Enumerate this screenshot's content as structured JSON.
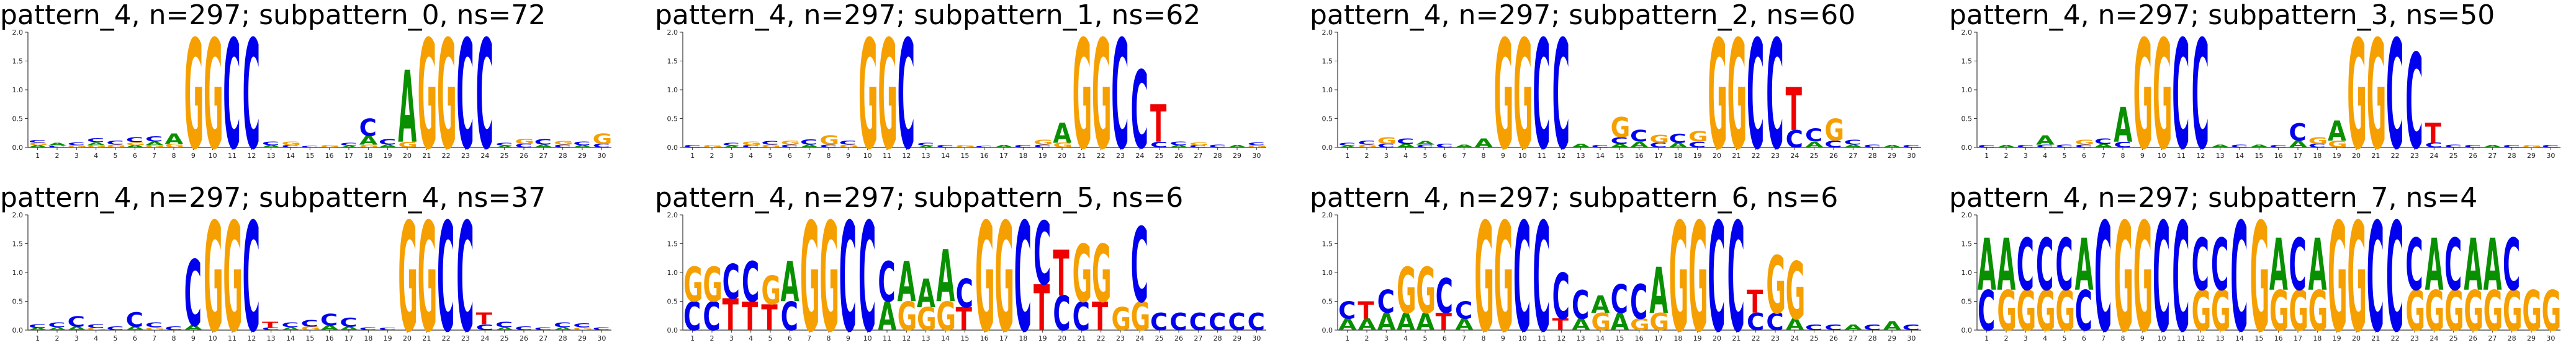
{
  "colors": {
    "A": "#109648",
    "C": "#255c99",
    "G": "#f7b32b",
    "T": "#d62839",
    "C_display": "#0000ee",
    "G_display": "#f5a000",
    "A_display": "#089000",
    "T_display": "#ee0000"
  },
  "chart_data": [
    {
      "type": "sequence-logo",
      "title": "pattern_4, n=297; subpattern_0, ns=72",
      "ylim": [
        0,
        2.0
      ],
      "yticks": [
        "0.0",
        "0.5",
        "1.0",
        "1.5",
        "2.0"
      ],
      "positions": [
        "1",
        "2",
        "3",
        "4",
        "5",
        "6",
        "7",
        "8",
        "9",
        "10",
        "11",
        "12",
        "13",
        "14",
        "15",
        "16",
        "17",
        "18",
        "19",
        "20",
        "21",
        "22",
        "23",
        "24",
        "25",
        "26",
        "27",
        "28",
        "29",
        "30"
      ],
      "columns": [
        {
          "C": 0.05,
          "A": 0.04,
          "G": 0.04
        },
        {
          "A": 0.05,
          "C": 0.03
        },
        {
          "C": 0.05,
          "G": 0.04
        },
        {
          "C": 0.07,
          "A": 0.05,
          "G": 0.04
        },
        {
          "C": 0.07,
          "G": 0.05
        },
        {
          "C": 0.08,
          "G": 0.05,
          "A": 0.04
        },
        {
          "C": 0.09,
          "A": 0.06,
          "G": 0.04
        },
        {
          "A": 0.18,
          "G": 0.06
        },
        {
          "G": 1.9
        },
        {
          "G": 1.9
        },
        {
          "C": 1.9
        },
        {
          "C": 1.9
        },
        {
          "C": 0.06,
          "A": 0.04
        },
        {
          "G": 0.06,
          "C": 0.04
        },
        {
          "C": 0.03
        },
        {
          "G": 0.04
        },
        {
          "C": 0.05,
          "A": 0.03
        },
        {
          "C": 0.3,
          "A": 0.15,
          "G": 0.05
        },
        {
          "C": 0.1,
          "A": 0.05
        },
        {
          "A": 1.25,
          "G": 0.1
        },
        {
          "G": 1.9
        },
        {
          "G": 1.9
        },
        {
          "C": 1.9
        },
        {
          "C": 1.9
        },
        {
          "C": 0.05,
          "A": 0.03
        },
        {
          "G": 0.09,
          "C": 0.06
        },
        {
          "C": 0.1,
          "A": 0.05
        },
        {
          "G": 0.06,
          "C": 0.05
        },
        {
          "C": 0.06,
          "A": 0.04
        },
        {
          "G": 0.18,
          "C": 0.06
        }
      ]
    },
    {
      "type": "sequence-logo",
      "title": "pattern_4, n=297; subpattern_1, ns=62",
      "ylim": [
        0,
        2.0
      ],
      "yticks": [
        "0.0",
        "0.5",
        "1.0",
        "1.5",
        "2.0"
      ],
      "positions": [
        "1",
        "2",
        "3",
        "4",
        "5",
        "6",
        "7",
        "8",
        "9",
        "10",
        "11",
        "12",
        "13",
        "14",
        "15",
        "16",
        "17",
        "18",
        "19",
        "20",
        "21",
        "22",
        "23",
        "24",
        "25",
        "26",
        "27",
        "28",
        "29",
        "30"
      ],
      "columns": [
        {
          "C": 0.04
        },
        {
          "G": 0.04
        },
        {
          "C": 0.05,
          "A": 0.03
        },
        {
          "G": 0.06,
          "C": 0.04
        },
        {
          "C": 0.06,
          "G": 0.05
        },
        {
          "G": 0.07,
          "C": 0.05
        },
        {
          "C": 0.09,
          "A": 0.05
        },
        {
          "G": 0.16,
          "C": 0.05
        },
        {
          "C": 0.07,
          "G": 0.05
        },
        {
          "G": 1.9
        },
        {
          "G": 1.9
        },
        {
          "C": 1.9
        },
        {
          "C": 0.05,
          "A": 0.03
        },
        {
          "C": 0.04
        },
        {
          "G": 0.04
        },
        {
          "C": 0.03
        },
        {
          "A": 0.04
        },
        {
          "C": 0.04
        },
        {
          "G": 0.08,
          "C": 0.05
        },
        {
          "A": 0.35,
          "G": 0.08
        },
        {
          "G": 1.9
        },
        {
          "G": 1.9
        },
        {
          "C": 1.9
        },
        {
          "C": 1.35
        },
        {
          "T": 0.65,
          "C": 0.1
        },
        {
          "C": 0.06,
          "A": 0.04
        },
        {
          "G": 0.05,
          "C": 0.04
        },
        {
          "C": 0.05
        },
        {
          "A": 0.04
        },
        {
          "C": 0.05,
          "G": 0.04
        }
      ]
    },
    {
      "type": "sequence-logo",
      "title": "pattern_4, n=297; subpattern_2, ns=60",
      "ylim": [
        0,
        2.0
      ],
      "yticks": [
        "0.0",
        "0.5",
        "1.0",
        "1.5",
        "2.0"
      ],
      "positions": [
        "1",
        "2",
        "3",
        "4",
        "5",
        "6",
        "7",
        "8",
        "9",
        "10",
        "11",
        "12",
        "13",
        "14",
        "15",
        "16",
        "17",
        "18",
        "19",
        "20",
        "21",
        "22",
        "23",
        "24",
        "25",
        "26",
        "27",
        "28",
        "29",
        "30"
      ],
      "columns": [
        {
          "C": 0.05,
          "A": 0.03
        },
        {
          "C": 0.07,
          "G": 0.05
        },
        {
          "G": 0.12,
          "C": 0.06
        },
        {
          "C": 0.1,
          "A": 0.06
        },
        {
          "A": 0.06,
          "C": 0.05
        },
        {
          "C": 0.06
        },
        {
          "A": 0.05
        },
        {
          "A": 0.15
        },
        {
          "G": 1.9
        },
        {
          "G": 1.9
        },
        {
          "C": 1.9
        },
        {
          "C": 1.9
        },
        {
          "A": 0.06
        },
        {
          "C": 0.04
        },
        {
          "G": 0.35,
          "C": 0.12,
          "A": 0.06
        },
        {
          "C": 0.2,
          "A": 0.1
        },
        {
          "G": 0.14,
          "C": 0.08
        },
        {
          "C": 0.15,
          "A": 0.08
        },
        {
          "G": 0.18,
          "C": 0.1
        },
        {
          "G": 1.9
        },
        {
          "G": 1.9
        },
        {
          "C": 1.9
        },
        {
          "C": 1.9
        },
        {
          "T": 0.75,
          "C": 0.3
        },
        {
          "C": 0.22,
          "A": 0.1
        },
        {
          "G": 0.38,
          "C": 0.12
        },
        {
          "C": 0.08,
          "A": 0.05
        },
        {
          "C": 0.05
        },
        {
          "A": 0.04
        },
        {
          "C": 0.04
        }
      ]
    },
    {
      "type": "sequence-logo",
      "title": "pattern_4, n=297; subpattern_3, ns=50",
      "ylim": [
        0,
        2.0
      ],
      "yticks": [
        "0.0",
        "0.5",
        "1.0",
        "1.5",
        "2.0"
      ],
      "positions": [
        "1",
        "2",
        "3",
        "4",
        "5",
        "6",
        "7",
        "8",
        "9",
        "10",
        "11",
        "12",
        "13",
        "14",
        "15",
        "16",
        "17",
        "18",
        "19",
        "20",
        "21",
        "22",
        "23",
        "24",
        "25",
        "26",
        "27",
        "28",
        "29",
        "30"
      ],
      "columns": [
        {
          "C": 0.04
        },
        {
          "A": 0.04
        },
        {
          "C": 0.04
        },
        {
          "A": 0.16,
          "C": 0.05
        },
        {
          "C": 0.05
        },
        {
          "G": 0.08,
          "C": 0.05
        },
        {
          "C": 0.1,
          "A": 0.06
        },
        {
          "A": 0.6,
          "C": 0.1
        },
        {
          "G": 1.9
        },
        {
          "G": 1.9
        },
        {
          "C": 1.9
        },
        {
          "C": 1.9
        },
        {
          "A": 0.05
        },
        {
          "C": 0.05
        },
        {
          "A": 0.05
        },
        {
          "C": 0.04
        },
        {
          "C": 0.3,
          "A": 0.12
        },
        {
          "G": 0.12,
          "C": 0.06
        },
        {
          "A": 0.35,
          "G": 0.12
        },
        {
          "G": 1.9
        },
        {
          "G": 1.9
        },
        {
          "C": 1.9
        },
        {
          "C": 1.65
        },
        {
          "T": 0.35,
          "C": 0.08
        },
        {
          "C": 0.05
        },
        {
          "C": 0.04
        },
        {
          "A": 0.04
        },
        {
          "C": 0.04
        },
        {
          "G": 0.04
        },
        {
          "C": 0.04
        }
      ]
    },
    {
      "type": "sequence-logo",
      "title": "pattern_4, n=297; subpattern_4, ns=37",
      "ylim": [
        0,
        2.0
      ],
      "yticks": [
        "0.0",
        "0.5",
        "1.0",
        "1.5",
        "2.0"
      ],
      "positions": [
        "1",
        "2",
        "3",
        "4",
        "5",
        "6",
        "7",
        "8",
        "9",
        "10",
        "11",
        "12",
        "13",
        "14",
        "15",
        "16",
        "17",
        "18",
        "19",
        "20",
        "21",
        "22",
        "23",
        "24",
        "25",
        "26",
        "27",
        "28",
        "29",
        "30"
      ],
      "columns": [
        {
          "C": 0.06,
          "A": 0.04
        },
        {
          "C": 0.08,
          "A": 0.05
        },
        {
          "C": 0.18,
          "A": 0.06
        },
        {
          "C": 0.06,
          "G": 0.04
        },
        {
          "C": 0.06
        },
        {
          "C": 0.25,
          "A": 0.06
        },
        {
          "C": 0.08,
          "G": 0.05
        },
        {
          "C": 0.06
        },
        {
          "C": 1.15,
          "A": 0.08
        },
        {
          "G": 1.9
        },
        {
          "G": 1.9
        },
        {
          "C": 1.9
        },
        {
          "T": 0.1,
          "C": 0.05
        },
        {
          "C": 0.08,
          "A": 0.05
        },
        {
          "C": 0.12,
          "G": 0.06
        },
        {
          "C": 0.2,
          "A": 0.08
        },
        {
          "C": 0.15,
          "A": 0.06
        },
        {
          "C": 0.05
        },
        {
          "C": 0.04
        },
        {
          "G": 1.9
        },
        {
          "G": 1.9
        },
        {
          "C": 1.9
        },
        {
          "C": 1.9
        },
        {
          "T": 0.2,
          "C": 0.1
        },
        {
          "C": 0.1,
          "A": 0.05
        },
        {
          "C": 0.06
        },
        {
          "C": 0.05
        },
        {
          "C": 0.08,
          "A": 0.05
        },
        {
          "C": 0.07,
          "G": 0.05
        },
        {
          "C": 0.05
        }
      ]
    },
    {
      "type": "sequence-logo",
      "title": "pattern_4, n=297; subpattern_5, ns=6",
      "ylim": [
        0,
        2.0
      ],
      "yticks": [
        "0.0",
        "0.5",
        "1.0",
        "1.5",
        "2.0"
      ],
      "positions": [
        "1",
        "2",
        "3",
        "4",
        "5",
        "6",
        "7",
        "8",
        "9",
        "10",
        "11",
        "12",
        "13",
        "14",
        "15",
        "16",
        "17",
        "18",
        "19",
        "20",
        "21",
        "22",
        "23",
        "24",
        "25",
        "26",
        "27",
        "28",
        "29",
        "30"
      ],
      "columns": [
        {
          "G": 0.6,
          "C": 0.5
        },
        {
          "G": 0.6,
          "C": 0.5
        },
        {
          "T": 0.55,
          "C": 0.6
        },
        {
          "C": 0.7,
          "T": 0.5
        },
        {
          "T": 0.45,
          "G": 0.5
        },
        {
          "A": 0.7,
          "C": 0.5
        },
        {
          "G": 1.9
        },
        {
          "G": 1.9
        },
        {
          "C": 1.9
        },
        {
          "C": 1.9
        },
        {
          "C": 0.7,
          "A": 0.5
        },
        {
          "A": 0.7,
          "G": 0.5
        },
        {
          "A": 0.5,
          "G": 0.4
        },
        {
          "A": 0.9,
          "G": 0.5
        },
        {
          "C": 0.5,
          "T": 0.4
        },
        {
          "G": 1.9
        },
        {
          "G": 1.9
        },
        {
          "C": 1.9
        },
        {
          "C": 1.1,
          "T": 0.8
        },
        {
          "T": 0.8,
          "C": 0.6
        },
        {
          "G": 1.0,
          "C": 0.5
        },
        {
          "G": 1.0,
          "T": 0.5
        },
        {
          "G": 0.4
        },
        {
          "C": 1.3,
          "G": 0.5
        },
        {
          "C": 0.3
        },
        {
          "C": 0.3
        },
        {
          "C": 0.3
        },
        {
          "C": 0.3
        },
        {
          "C": 0.3
        },
        {
          "C": 0.3
        }
      ]
    },
    {
      "type": "sequence-logo",
      "title": "pattern_4, n=297; subpattern_6, ns=6",
      "ylim": [
        0,
        2.0
      ],
      "yticks": [
        "0.0",
        "0.5",
        "1.0",
        "1.5",
        "2.0"
      ],
      "positions": [
        "1",
        "2",
        "3",
        "4",
        "5",
        "6",
        "7",
        "8",
        "9",
        "10",
        "11",
        "12",
        "13",
        "14",
        "15",
        "16",
        "17",
        "18",
        "19",
        "20",
        "21",
        "22",
        "23",
        "24",
        "25",
        "26",
        "27",
        "28",
        "29",
        "30"
      ],
      "columns": [
        {
          "C": 0.3,
          "A": 0.2
        },
        {
          "T": 0.3,
          "A": 0.2
        },
        {
          "C": 0.4,
          "A": 0.3
        },
        {
          "G": 0.8,
          "A": 0.3
        },
        {
          "G": 0.8,
          "A": 0.3
        },
        {
          "C": 0.6,
          "T": 0.3
        },
        {
          "C": 0.3,
          "A": 0.2
        },
        {
          "G": 1.9
        },
        {
          "G": 1.9
        },
        {
          "C": 1.9
        },
        {
          "C": 1.9
        },
        {
          "C": 0.8,
          "T": 0.2
        },
        {
          "C": 0.5,
          "A": 0.2
        },
        {
          "G": 0.3,
          "A": 0.3
        },
        {
          "C": 0.5,
          "A": 0.3
        },
        {
          "C": 0.6,
          "G": 0.2
        },
        {
          "A": 0.8,
          "G": 0.3
        },
        {
          "G": 1.9
        },
        {
          "G": 1.9
        },
        {
          "C": 1.9
        },
        {
          "C": 1.9
        },
        {
          "T": 0.4,
          "C": 0.3
        },
        {
          "G": 1.0,
          "C": 0.3
        },
        {
          "G": 1.0,
          "A": 0.2
        },
        {
          "C": 0.1
        },
        {
          "C": 0.1
        },
        {
          "A": 0.1
        },
        {
          "C": 0.1
        },
        {
          "A": 0.15
        },
        {
          "C": 0.1
        }
      ]
    },
    {
      "type": "sequence-logo",
      "title": "pattern_4, n=297; subpattern_7, ns=4",
      "ylim": [
        0,
        2.0
      ],
      "yticks": [
        "0.0",
        "0.5",
        "1.0",
        "1.5",
        "2.0"
      ],
      "positions": [
        "1",
        "2",
        "3",
        "4",
        "5",
        "6",
        "7",
        "8",
        "9",
        "10",
        "11",
        "12",
        "13",
        "14",
        "15",
        "16",
        "17",
        "18",
        "19",
        "20",
        "21",
        "22",
        "23",
        "24",
        "25",
        "26",
        "27",
        "28",
        "29",
        "30"
      ],
      "columns": [
        {
          "A": 0.9,
          "C": 0.7
        },
        {
          "A": 0.9,
          "G": 0.7
        },
        {
          "C": 0.9,
          "G": 0.7
        },
        {
          "C": 0.9,
          "G": 0.7
        },
        {
          "C": 0.9,
          "G": 0.7
        },
        {
          "A": 0.9,
          "C": 0.7
        },
        {
          "C": 1.9
        },
        {
          "G": 1.9
        },
        {
          "G": 1.9
        },
        {
          "C": 1.9
        },
        {
          "C": 1.9
        },
        {
          "C": 0.9,
          "G": 0.7
        },
        {
          "V": 0,
          "C": 0.9,
          "G": 0.7
        },
        {
          "C": 1.9
        },
        {
          "G": 1.9
        },
        {
          "A": 0.9,
          "G": 0.7
        },
        {
          "C": 0.9,
          "G": 0.7
        },
        {
          "A": 0.9,
          "G": 0.7
        },
        {
          "G": 1.9
        },
        {
          "G": 1.9
        },
        {
          "C": 1.9
        },
        {
          "C": 1.9
        },
        {
          "C": 0.9,
          "G": 0.7
        },
        {
          "A": 0.9,
          "G": 0.7
        },
        {
          "C": 0.9,
          "G": 0.7
        },
        {
          "A": 0.9,
          "G": 0.7
        },
        {
          "A": 0.9,
          "G": 0.7
        },
        {
          "C": 0.9,
          "G": 0.7
        },
        {
          "G": 0.7
        },
        {
          "G": 0.7
        }
      ]
    }
  ]
}
